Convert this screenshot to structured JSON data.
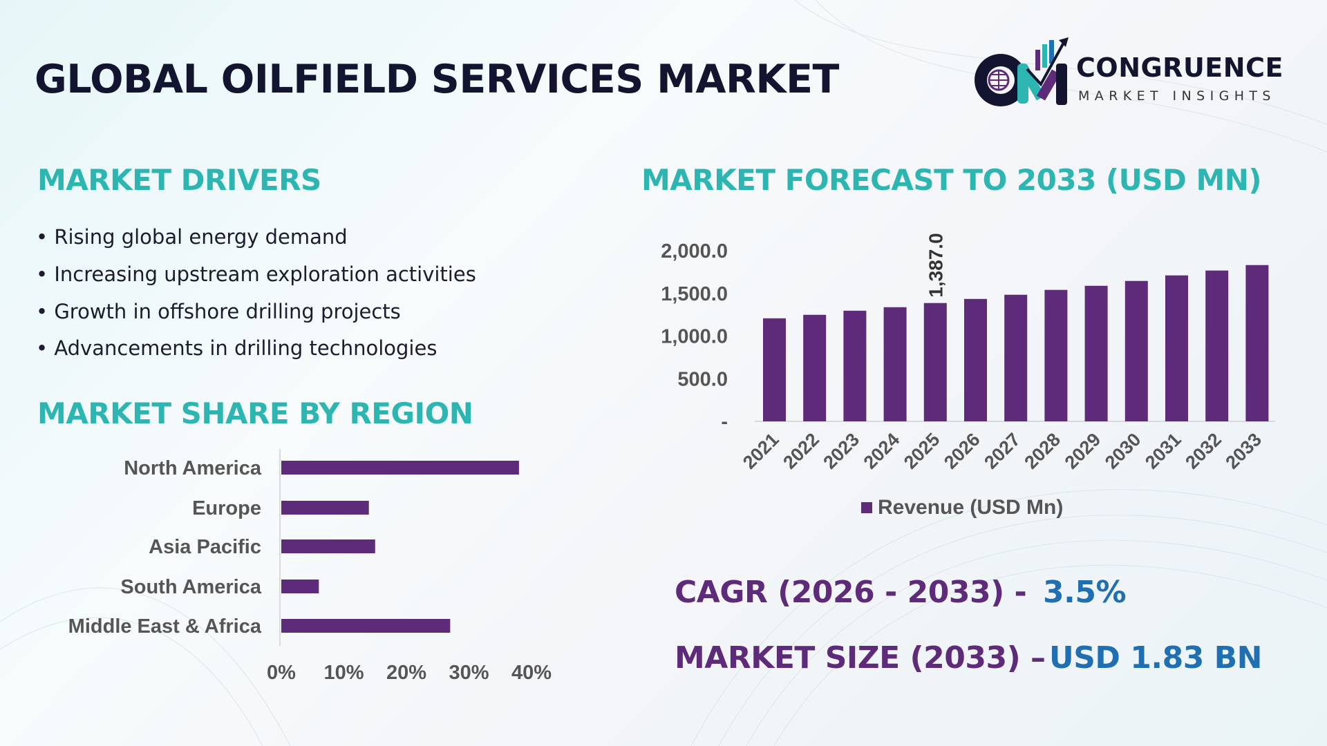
{
  "header": {
    "title": "GLOBAL OILFIELD SERVICES MARKET",
    "logo_name": "CONGRUENCE",
    "logo_sub": "MARKET INSIGHTS"
  },
  "drivers": {
    "heading": "MARKET DRIVERS",
    "items": [
      "• Rising global energy demand",
      "• Increasing upstream exploration activities",
      "• Growth in offshore drilling projects",
      "• Advancements in drilling technologies"
    ]
  },
  "colors": {
    "teal": "#2db5b1",
    "purple": "#5e2a7a",
    "blue": "#1f6fb2",
    "navy": "#13142f",
    "axis_text": "#555555"
  },
  "kpis": {
    "cagr_label": "CAGR (2026 - 2033) -",
    "cagr_value": "3.5%",
    "size_label": "MARKET SIZE (2033) –",
    "size_value": "USD 1.83 BN"
  },
  "chart_data": [
    {
      "type": "bar",
      "orientation": "vertical",
      "title": "MARKET FORECAST TO 2033 (USD MN)",
      "categories": [
        "2021",
        "2022",
        "2023",
        "2024",
        "2025",
        "2026",
        "2027",
        "2028",
        "2029",
        "2030",
        "2031",
        "2032",
        "2033"
      ],
      "series": [
        {
          "name": "Revenue (USD Mn)",
          "values": [
            1208,
            1249,
            1297,
            1338,
            1387,
            1435,
            1484,
            1541,
            1589,
            1646,
            1711,
            1768,
            1832
          ]
        }
      ],
      "data_labels": [
        {
          "category": "2025",
          "text": "1,387.0"
        }
      ],
      "yticks": [
        "-",
        "500.0",
        "1,000.0",
        "1,500.0",
        "2,000.0"
      ],
      "ylim": [
        0,
        2000
      ],
      "grid": false,
      "legend": "bottom",
      "color": "#5e2a7a"
    },
    {
      "type": "bar",
      "orientation": "horizontal",
      "title": "MARKET SHARE BY REGION",
      "categories": [
        "North America",
        "Europe",
        "Asia Pacific",
        "South America",
        "Middle East & Africa"
      ],
      "values": [
        38,
        14,
        15,
        6,
        27
      ],
      "xticks": [
        "0%",
        "10%",
        "20%",
        "30%",
        "40%"
      ],
      "xlim": [
        0,
        40
      ],
      "grid": false,
      "color": "#5e2a7a"
    }
  ]
}
